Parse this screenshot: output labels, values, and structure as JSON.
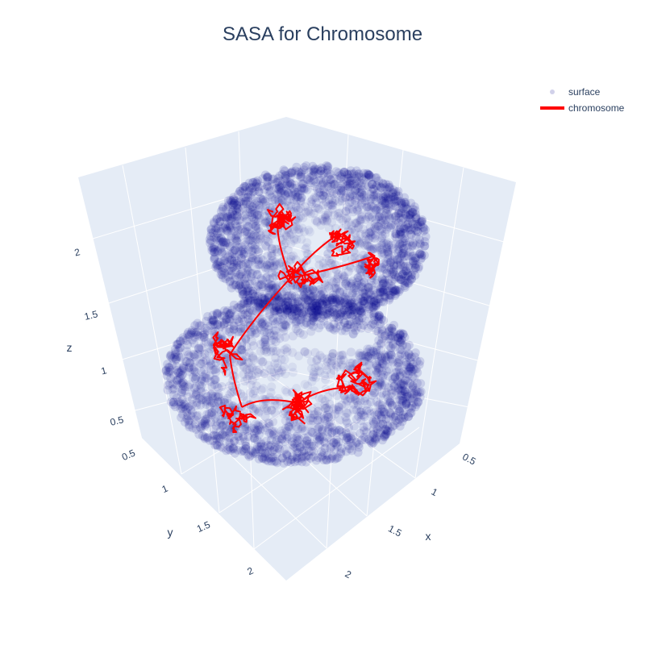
{
  "chart_data": {
    "type": "scatter3d",
    "title": "SASA for Chromosome",
    "x_axis": {
      "label": "x",
      "ticks": [
        "0.5",
        "1",
        "1.5",
        "2"
      ]
    },
    "y_axis": {
      "label": "y",
      "ticks": [
        "0.5",
        "1",
        "1.5",
        "2"
      ]
    },
    "z_axis": {
      "label": "z",
      "ticks": [
        "0.5",
        "1",
        "1.5",
        "2"
      ]
    },
    "legend": {
      "placement": "top-right",
      "entries": [
        {
          "name": "surface",
          "mode": "markers",
          "color": "#00008b",
          "opacity": 0.15
        },
        {
          "name": "chromosome",
          "mode": "lines",
          "color": "#ff0000"
        }
      ]
    },
    "series": [
      {
        "name": "surface",
        "description_shape": "two stacked rounded lobes"
      },
      {
        "name": "chromosome",
        "description_shape": "tangled polymer path"
      }
    ],
    "colors": {
      "pane": "#e5ecf6",
      "grid": "#ffffff",
      "text": "#2a3f5f",
      "surface": "#00008b",
      "chromosome": "#ff0000"
    }
  }
}
